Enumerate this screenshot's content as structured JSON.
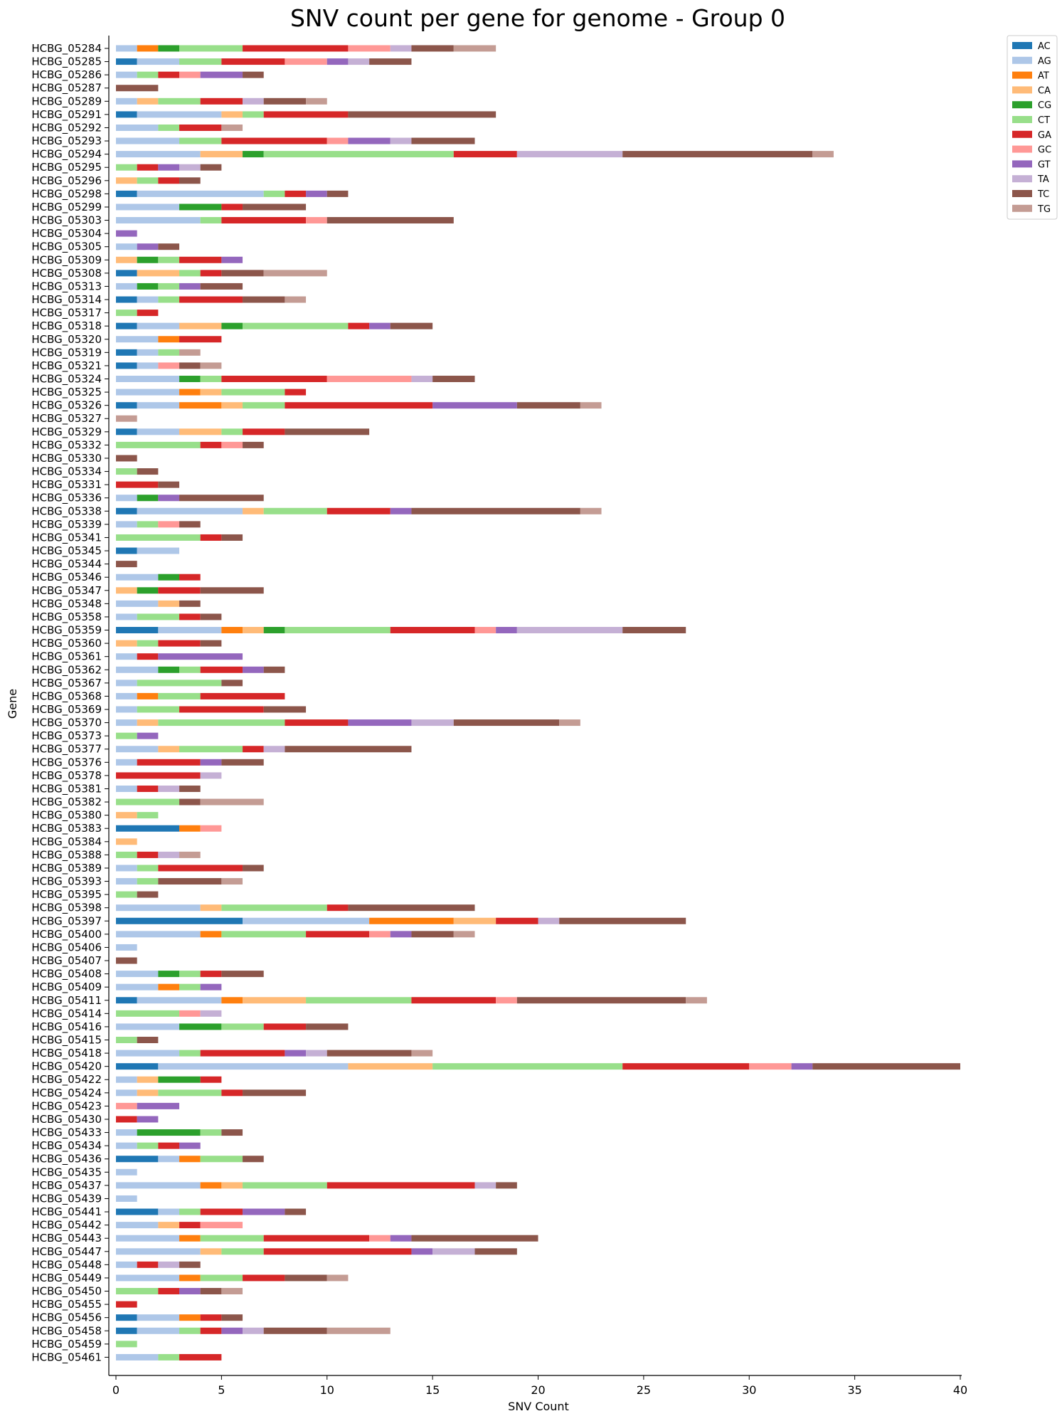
{
  "chart_data": {
    "type": "bar",
    "orientation": "horizontal",
    "stacked": true,
    "title": "SNV count per gene for genome - Group 0",
    "xlabel": "SNV Count",
    "ylabel": "Gene",
    "xlim": [
      0,
      40
    ],
    "xticks": [
      "0",
      "5",
      "10",
      "15",
      "20",
      "25",
      "30",
      "35",
      "40"
    ],
    "legend_position": "top-right",
    "grid": false,
    "series_names": [
      "AC",
      "AG",
      "AT",
      "CA",
      "CG",
      "CT",
      "GA",
      "GC",
      "GT",
      "TA",
      "TC",
      "TG"
    ],
    "colors": {
      "AC": "#1f77b4",
      "AG": "#aec7e8",
      "AT": "#ff7f0e",
      "CA": "#ffbb78",
      "CG": "#2ca02c",
      "CT": "#98df8a",
      "GA": "#d62728",
      "GC": "#ff9896",
      "GT": "#9467bd",
      "TA": "#c5b0d5",
      "TC": "#8c564b",
      "TG": "#c49c94"
    },
    "categories": [
      "HCBG_05284",
      "HCBG_05285",
      "HCBG_05286",
      "HCBG_05287",
      "HCBG_05289",
      "HCBG_05291",
      "HCBG_05292",
      "HCBG_05293",
      "HCBG_05294",
      "HCBG_05295",
      "HCBG_05296",
      "HCBG_05298",
      "HCBG_05299",
      "HCBG_05303",
      "HCBG_05304",
      "HCBG_05305",
      "HCBG_05309",
      "HCBG_05308",
      "HCBG_05313",
      "HCBG_05314",
      "HCBG_05317",
      "HCBG_05318",
      "HCBG_05320",
      "HCBG_05319",
      "HCBG_05321",
      "HCBG_05324",
      "HCBG_05325",
      "HCBG_05326",
      "HCBG_05327",
      "HCBG_05329",
      "HCBG_05332",
      "HCBG_05330",
      "HCBG_05334",
      "HCBG_05331",
      "HCBG_05336",
      "HCBG_05338",
      "HCBG_05339",
      "HCBG_05341",
      "HCBG_05345",
      "HCBG_05344",
      "HCBG_05346",
      "HCBG_05347",
      "HCBG_05348",
      "HCBG_05358",
      "HCBG_05359",
      "HCBG_05360",
      "HCBG_05361",
      "HCBG_05362",
      "HCBG_05367",
      "HCBG_05368",
      "HCBG_05369",
      "HCBG_05370",
      "HCBG_05373",
      "HCBG_05377",
      "HCBG_05376",
      "HCBG_05378",
      "HCBG_05381",
      "HCBG_05382",
      "HCBG_05380",
      "HCBG_05383",
      "HCBG_05384",
      "HCBG_05388",
      "HCBG_05389",
      "HCBG_05393",
      "HCBG_05395",
      "HCBG_05398",
      "HCBG_05397",
      "HCBG_05400",
      "HCBG_05406",
      "HCBG_05407",
      "HCBG_05408",
      "HCBG_05409",
      "HCBG_05411",
      "HCBG_05414",
      "HCBG_05416",
      "HCBG_05415",
      "HCBG_05418",
      "HCBG_05420",
      "HCBG_05422",
      "HCBG_05424",
      "HCBG_05423",
      "HCBG_05430",
      "HCBG_05433",
      "HCBG_05434",
      "HCBG_05436",
      "HCBG_05435",
      "HCBG_05437",
      "HCBG_05439",
      "HCBG_05441",
      "HCBG_05442",
      "HCBG_05443",
      "HCBG_05447",
      "HCBG_05448",
      "HCBG_05449",
      "HCBG_05450",
      "HCBG_05455",
      "HCBG_05456",
      "HCBG_05458",
      "HCBG_05459",
      "HCBG_05461"
    ],
    "values": [
      [
        0,
        1,
        1,
        0,
        1,
        3,
        5,
        2,
        0,
        1,
        2,
        2
      ],
      [
        1,
        2,
        0,
        0,
        0,
        2,
        3,
        2,
        1,
        1,
        2,
        0
      ],
      [
        0,
        1,
        0,
        0,
        0,
        1,
        1,
        1,
        2,
        0,
        1,
        0
      ],
      [
        0,
        0,
        0,
        0,
        0,
        0,
        0,
        0,
        0,
        0,
        2,
        0
      ],
      [
        0,
        1,
        0,
        1,
        0,
        2,
        2,
        0,
        0,
        1,
        2,
        1
      ],
      [
        1,
        4,
        0,
        1,
        0,
        1,
        4,
        0,
        0,
        0,
        7,
        0
      ],
      [
        0,
        2,
        0,
        0,
        0,
        1,
        2,
        0,
        0,
        0,
        0,
        1
      ],
      [
        0,
        3,
        0,
        0,
        0,
        2,
        5,
        1,
        2,
        1,
        3,
        0
      ],
      [
        0,
        4,
        0,
        2,
        1,
        9,
        3,
        0,
        0,
        5,
        9,
        1
      ],
      [
        0,
        0,
        0,
        0,
        0,
        1,
        1,
        0,
        1,
        1,
        1,
        0
      ],
      [
        0,
        0,
        0,
        1,
        0,
        1,
        1,
        0,
        0,
        0,
        1,
        0
      ],
      [
        1,
        6,
        0,
        0,
        0,
        1,
        1,
        0,
        1,
        0,
        1,
        0
      ],
      [
        0,
        3,
        0,
        0,
        2,
        0,
        1,
        0,
        0,
        0,
        3,
        0
      ],
      [
        0,
        4,
        0,
        0,
        0,
        1,
        4,
        1,
        0,
        0,
        6,
        0
      ],
      [
        0,
        0,
        0,
        0,
        0,
        0,
        0,
        0,
        1,
        0,
        0,
        0
      ],
      [
        0,
        1,
        0,
        0,
        0,
        0,
        0,
        0,
        1,
        0,
        1,
        0
      ],
      [
        0,
        0,
        0,
        1,
        1,
        1,
        2,
        0,
        1,
        0,
        0,
        0
      ],
      [
        1,
        0,
        0,
        2,
        0,
        1,
        1,
        0,
        0,
        0,
        2,
        3
      ],
      [
        0,
        1,
        0,
        0,
        1,
        1,
        0,
        0,
        1,
        0,
        2,
        0
      ],
      [
        1,
        1,
        0,
        0,
        0,
        1,
        3,
        0,
        0,
        0,
        2,
        1
      ],
      [
        0,
        0,
        0,
        0,
        0,
        1,
        1,
        0,
        0,
        0,
        0,
        0
      ],
      [
        1,
        2,
        0,
        2,
        1,
        5,
        1,
        0,
        1,
        0,
        2,
        0
      ],
      [
        0,
        2,
        1,
        0,
        0,
        0,
        2,
        0,
        0,
        0,
        0,
        0
      ],
      [
        1,
        1,
        0,
        0,
        0,
        1,
        0,
        0,
        0,
        0,
        0,
        1
      ],
      [
        1,
        1,
        0,
        0,
        0,
        0,
        0,
        1,
        0,
        0,
        1,
        1
      ],
      [
        0,
        3,
        0,
        0,
        1,
        1,
        5,
        4,
        0,
        1,
        2,
        0
      ],
      [
        0,
        3,
        1,
        1,
        0,
        3,
        1,
        0,
        0,
        0,
        0,
        0
      ],
      [
        1,
        2,
        2,
        1,
        0,
        2,
        7,
        0,
        4,
        0,
        3,
        1
      ],
      [
        0,
        0,
        0,
        0,
        0,
        0,
        0,
        0,
        0,
        0,
        0,
        1
      ],
      [
        1,
        2,
        0,
        2,
        0,
        1,
        2,
        0,
        0,
        0,
        4,
        0
      ],
      [
        0,
        0,
        0,
        0,
        0,
        4,
        1,
        1,
        0,
        0,
        1,
        0
      ],
      [
        0,
        0,
        0,
        0,
        0,
        0,
        0,
        0,
        0,
        0,
        1,
        0
      ],
      [
        0,
        0,
        0,
        0,
        0,
        1,
        0,
        0,
        0,
        0,
        1,
        0
      ],
      [
        0,
        0,
        0,
        0,
        0,
        0,
        2,
        0,
        0,
        0,
        1,
        0
      ],
      [
        0,
        1,
        0,
        0,
        1,
        0,
        0,
        0,
        1,
        0,
        4,
        0
      ],
      [
        1,
        5,
        0,
        1,
        0,
        3,
        3,
        0,
        1,
        0,
        8,
        1
      ],
      [
        0,
        1,
        0,
        0,
        0,
        1,
        0,
        1,
        0,
        0,
        1,
        0
      ],
      [
        0,
        0,
        0,
        0,
        0,
        4,
        1,
        0,
        0,
        0,
        1,
        0
      ],
      [
        1,
        2,
        0,
        0,
        0,
        0,
        0,
        0,
        0,
        0,
        0,
        0
      ],
      [
        0,
        0,
        0,
        0,
        0,
        0,
        0,
        0,
        0,
        0,
        1,
        0
      ],
      [
        0,
        2,
        0,
        0,
        1,
        0,
        1,
        0,
        0,
        0,
        0,
        0
      ],
      [
        0,
        0,
        0,
        1,
        1,
        0,
        2,
        0,
        0,
        0,
        3,
        0
      ],
      [
        0,
        2,
        0,
        1,
        0,
        0,
        0,
        0,
        0,
        0,
        1,
        0
      ],
      [
        0,
        1,
        0,
        0,
        0,
        2,
        1,
        0,
        0,
        0,
        1,
        0
      ],
      [
        2,
        3,
        1,
        1,
        1,
        5,
        4,
        1,
        1,
        5,
        3,
        0
      ],
      [
        0,
        0,
        0,
        1,
        0,
        1,
        2,
        0,
        0,
        0,
        1,
        0
      ],
      [
        0,
        1,
        0,
        0,
        0,
        0,
        1,
        0,
        4,
        0,
        0,
        0
      ],
      [
        0,
        2,
        0,
        0,
        1,
        1,
        2,
        0,
        1,
        0,
        1,
        0
      ],
      [
        0,
        1,
        0,
        0,
        0,
        4,
        0,
        0,
        0,
        0,
        1,
        0
      ],
      [
        0,
        1,
        1,
        0,
        0,
        2,
        4,
        0,
        0,
        0,
        0,
        0
      ],
      [
        0,
        1,
        0,
        0,
        0,
        2,
        4,
        0,
        0,
        0,
        2,
        0
      ],
      [
        0,
        1,
        0,
        1,
        0,
        6,
        3,
        0,
        3,
        2,
        5,
        1
      ],
      [
        0,
        0,
        0,
        0,
        0,
        1,
        0,
        0,
        1,
        0,
        0,
        0
      ],
      [
        0,
        2,
        0,
        1,
        0,
        3,
        1,
        0,
        0,
        1,
        6,
        0
      ],
      [
        0,
        1,
        0,
        0,
        0,
        0,
        3,
        0,
        1,
        0,
        2,
        0
      ],
      [
        0,
        0,
        0,
        0,
        0,
        0,
        4,
        0,
        0,
        1,
        0,
        0
      ],
      [
        0,
        1,
        0,
        0,
        0,
        0,
        1,
        0,
        0,
        1,
        1,
        0
      ],
      [
        0,
        0,
        0,
        0,
        0,
        3,
        0,
        0,
        0,
        0,
        1,
        3
      ],
      [
        0,
        0,
        0,
        1,
        0,
        1,
        0,
        0,
        0,
        0,
        0,
        0
      ],
      [
        3,
        0,
        1,
        0,
        0,
        0,
        0,
        1,
        0,
        0,
        0,
        0
      ],
      [
        0,
        0,
        0,
        1,
        0,
        0,
        0,
        0,
        0,
        0,
        0,
        0
      ],
      [
        0,
        0,
        0,
        0,
        0,
        1,
        1,
        0,
        0,
        1,
        0,
        1
      ],
      [
        0,
        1,
        0,
        0,
        0,
        1,
        4,
        0,
        0,
        0,
        1,
        0
      ],
      [
        0,
        1,
        0,
        0,
        0,
        1,
        0,
        0,
        0,
        0,
        3,
        1
      ],
      [
        0,
        0,
        0,
        0,
        0,
        1,
        0,
        0,
        0,
        0,
        1,
        0
      ],
      [
        0,
        4,
        0,
        1,
        0,
        5,
        1,
        0,
        0,
        0,
        6,
        0
      ],
      [
        6,
        6,
        4,
        2,
        0,
        0,
        2,
        0,
        0,
        1,
        6,
        0
      ],
      [
        0,
        4,
        1,
        0,
        0,
        4,
        3,
        1,
        1,
        0,
        2,
        1
      ],
      [
        0,
        1,
        0,
        0,
        0,
        0,
        0,
        0,
        0,
        0,
        0,
        0
      ],
      [
        0,
        0,
        0,
        0,
        0,
        0,
        0,
        0,
        0,
        0,
        1,
        0
      ],
      [
        0,
        2,
        0,
        0,
        1,
        1,
        1,
        0,
        0,
        0,
        2,
        0
      ],
      [
        0,
        2,
        1,
        0,
        0,
        1,
        0,
        0,
        1,
        0,
        0,
        0
      ],
      [
        1,
        4,
        1,
        3,
        0,
        5,
        4,
        1,
        0,
        0,
        8,
        1
      ],
      [
        0,
        0,
        0,
        0,
        0,
        3,
        0,
        1,
        0,
        1,
        0,
        0
      ],
      [
        0,
        3,
        0,
        0,
        2,
        2,
        2,
        0,
        0,
        0,
        2,
        0
      ],
      [
        0,
        0,
        0,
        0,
        0,
        1,
        0,
        0,
        0,
        0,
        1,
        0
      ],
      [
        0,
        3,
        0,
        0,
        0,
        1,
        4,
        0,
        1,
        1,
        4,
        1
      ],
      [
        2,
        9,
        0,
        4,
        0,
        9,
        6,
        2,
        1,
        0,
        7,
        0
      ],
      [
        0,
        1,
        0,
        1,
        2,
        0,
        1,
        0,
        0,
        0,
        0,
        0
      ],
      [
        0,
        1,
        0,
        1,
        0,
        3,
        1,
        0,
        0,
        0,
        3,
        0
      ],
      [
        0,
        0,
        0,
        0,
        0,
        0,
        0,
        1,
        2,
        0,
        0,
        0
      ],
      [
        0,
        0,
        0,
        0,
        0,
        0,
        1,
        0,
        1,
        0,
        0,
        0
      ],
      [
        0,
        1,
        0,
        0,
        3,
        1,
        0,
        0,
        0,
        0,
        1,
        0
      ],
      [
        0,
        1,
        0,
        0,
        0,
        1,
        1,
        0,
        1,
        0,
        0,
        0
      ],
      [
        2,
        1,
        1,
        0,
        0,
        2,
        0,
        0,
        0,
        0,
        1,
        0
      ],
      [
        0,
        1,
        0,
        0,
        0,
        0,
        0,
        0,
        0,
        0,
        0,
        0
      ],
      [
        0,
        4,
        1,
        1,
        0,
        4,
        7,
        0,
        0,
        1,
        1,
        0
      ],
      [
        0,
        1,
        0,
        0,
        0,
        0,
        0,
        0,
        0,
        0,
        0,
        0
      ],
      [
        2,
        1,
        0,
        0,
        0,
        1,
        2,
        0,
        2,
        0,
        1,
        0
      ],
      [
        0,
        2,
        0,
        1,
        0,
        0,
        1,
        2,
        0,
        0,
        0,
        0
      ],
      [
        0,
        3,
        1,
        0,
        0,
        3,
        5,
        1,
        1,
        0,
        6,
        0
      ],
      [
        0,
        4,
        0,
        1,
        0,
        2,
        7,
        0,
        1,
        2,
        2,
        0
      ],
      [
        0,
        1,
        0,
        0,
        0,
        0,
        1,
        0,
        0,
        1,
        1,
        0
      ],
      [
        0,
        3,
        1,
        0,
        0,
        2,
        2,
        0,
        0,
        0,
        2,
        1
      ],
      [
        0,
        0,
        0,
        0,
        0,
        2,
        1,
        0,
        1,
        0,
        1,
        1
      ],
      [
        0,
        0,
        0,
        0,
        0,
        0,
        1,
        0,
        0,
        0,
        0,
        0
      ],
      [
        1,
        2,
        1,
        0,
        0,
        0,
        1,
        0,
        0,
        0,
        1,
        0
      ],
      [
        1,
        2,
        0,
        0,
        0,
        1,
        1,
        0,
        1,
        1,
        3,
        3
      ],
      [
        0,
        0,
        0,
        0,
        0,
        1,
        0,
        0,
        0,
        0,
        0,
        0
      ],
      [
        0,
        2,
        0,
        0,
        0,
        1,
        2,
        0,
        0,
        0,
        0,
        0
      ]
    ]
  }
}
